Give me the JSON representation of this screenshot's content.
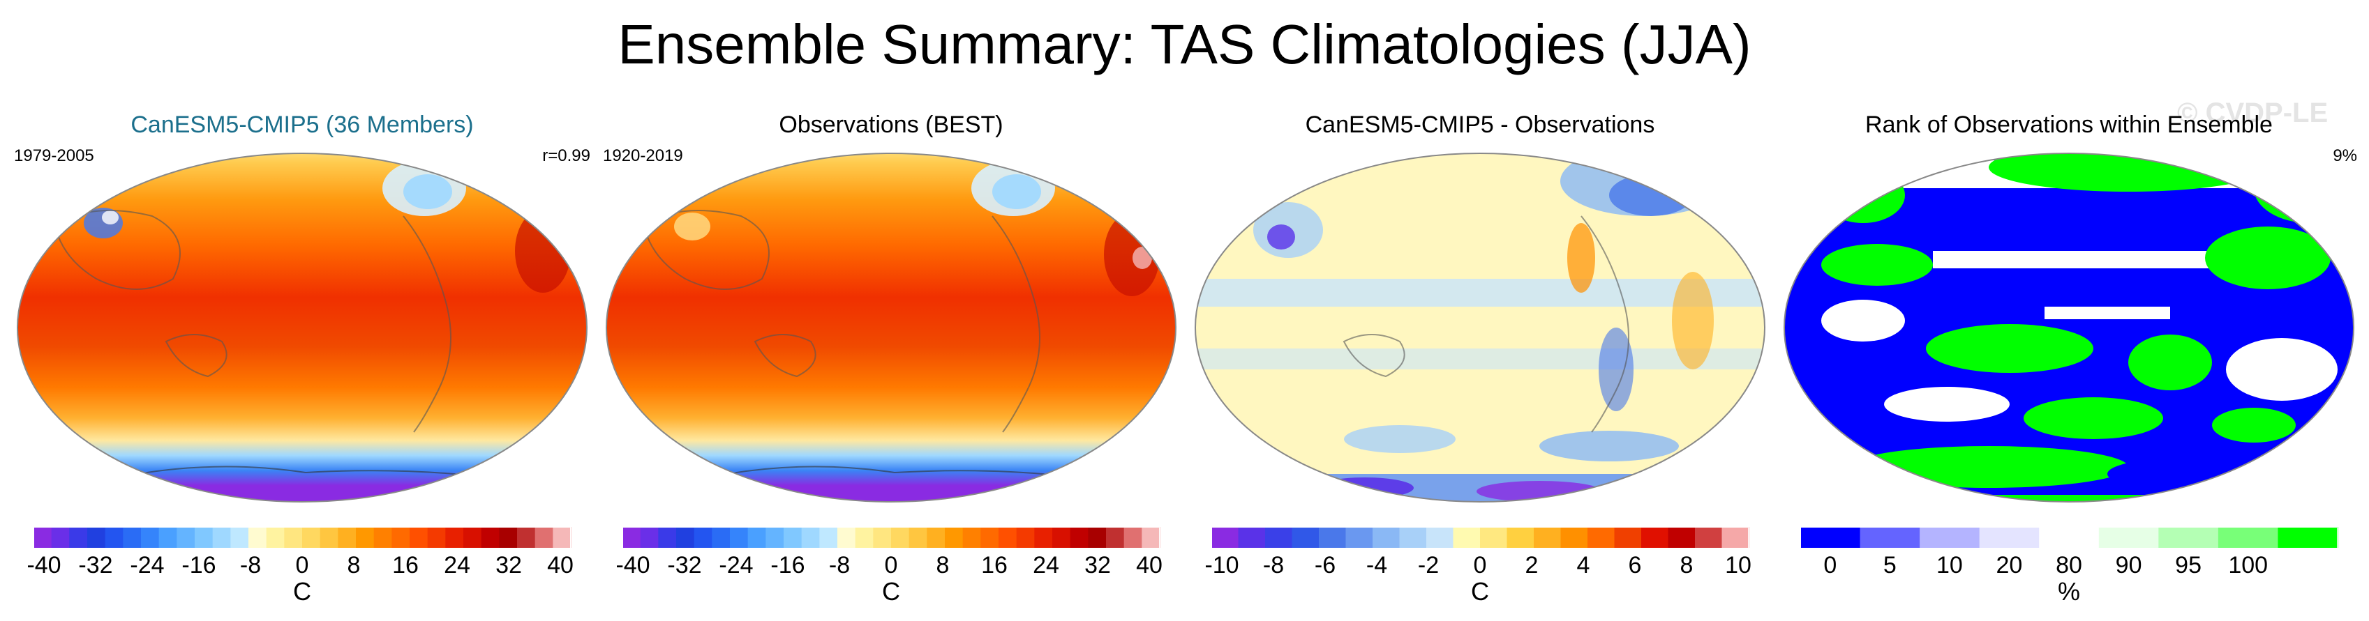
{
  "figure": {
    "title": "Ensemble Summary: TAS Climatologies (JJA)",
    "watermark": "© CVDP-LE"
  },
  "panels": [
    {
      "title": "CanESM5-CMIP5 (36 Members)",
      "period": "1979-2005",
      "stat": "r=0.99",
      "colormap": "temperature",
      "colorbar": {
        "unit": "C",
        "ticks": [
          "-40",
          "-32",
          "-24",
          "-16",
          "-8",
          "0",
          "8",
          "16",
          "24",
          "32",
          "40"
        ],
        "colors": [
          "#8a2be2",
          "#6a2fe8",
          "#3a3ae8",
          "#2040e0",
          "#2355f0",
          "#2a6cf5",
          "#3584fb",
          "#4aa0ff",
          "#64b4ff",
          "#80c8ff",
          "#9fd8ff",
          "#bfe8ff",
          "#fffbd0",
          "#fff3a0",
          "#ffe680",
          "#ffd860",
          "#ffc640",
          "#ffb020",
          "#ff9800",
          "#ff8000",
          "#ff6a00",
          "#ff5000",
          "#f43a00",
          "#e82000",
          "#d81000",
          "#c00000",
          "#a80000",
          "#c03030",
          "#e07070",
          "#f5b8b8"
        ]
      }
    },
    {
      "title": "Observations (BEST)",
      "period": "1920-2019",
      "stat": "",
      "colormap": "temperature",
      "colorbar": {
        "unit": "C",
        "ticks": [
          "-40",
          "-32",
          "-24",
          "-16",
          "-8",
          "0",
          "8",
          "16",
          "24",
          "32",
          "40"
        ],
        "colors": [
          "#8a2be2",
          "#6a2fe8",
          "#3a3ae8",
          "#2040e0",
          "#2355f0",
          "#2a6cf5",
          "#3584fb",
          "#4aa0ff",
          "#64b4ff",
          "#80c8ff",
          "#9fd8ff",
          "#bfe8ff",
          "#fffbd0",
          "#fff3a0",
          "#ffe680",
          "#ffd860",
          "#ffc640",
          "#ffb020",
          "#ff9800",
          "#ff8000",
          "#ff6a00",
          "#ff5000",
          "#f43a00",
          "#e82000",
          "#d81000",
          "#c00000",
          "#a80000",
          "#c03030",
          "#e07070",
          "#f5b8b8"
        ]
      }
    },
    {
      "title": "CanESM5-CMIP5 - Observations",
      "period": "",
      "stat": "",
      "colormap": "difference",
      "colorbar": {
        "unit": "C",
        "ticks": [
          "-10",
          "-8",
          "-6",
          "-4",
          "-2",
          "0",
          "2",
          "4",
          "6",
          "8",
          "10"
        ],
        "colors": [
          "#8a2be2",
          "#5a32e8",
          "#3a40e8",
          "#3058e8",
          "#4a78ea",
          "#6a98f0",
          "#8ab8f5",
          "#a8d0f8",
          "#c8e4fa",
          "#fffab0",
          "#ffe880",
          "#ffd040",
          "#ffb020",
          "#ff9000",
          "#ff6a00",
          "#f04000",
          "#e01000",
          "#c00000",
          "#d04040",
          "#f5a8a8"
        ]
      }
    },
    {
      "title": "Rank of Observations within Ensemble",
      "period": "",
      "stat": "9%",
      "colormap": "rank",
      "colorbar": {
        "unit": "%",
        "ticks": [
          "0",
          "5",
          "10",
          "20",
          "80",
          "90",
          "95",
          "100"
        ],
        "colors": [
          "#0000ff",
          "#6464ff",
          "#b4b4ff",
          "#e4e4ff",
          "#ffffff",
          "#e6ffe6",
          "#b4ffb4",
          "#78ff78",
          "#00ff00"
        ]
      }
    }
  ]
}
